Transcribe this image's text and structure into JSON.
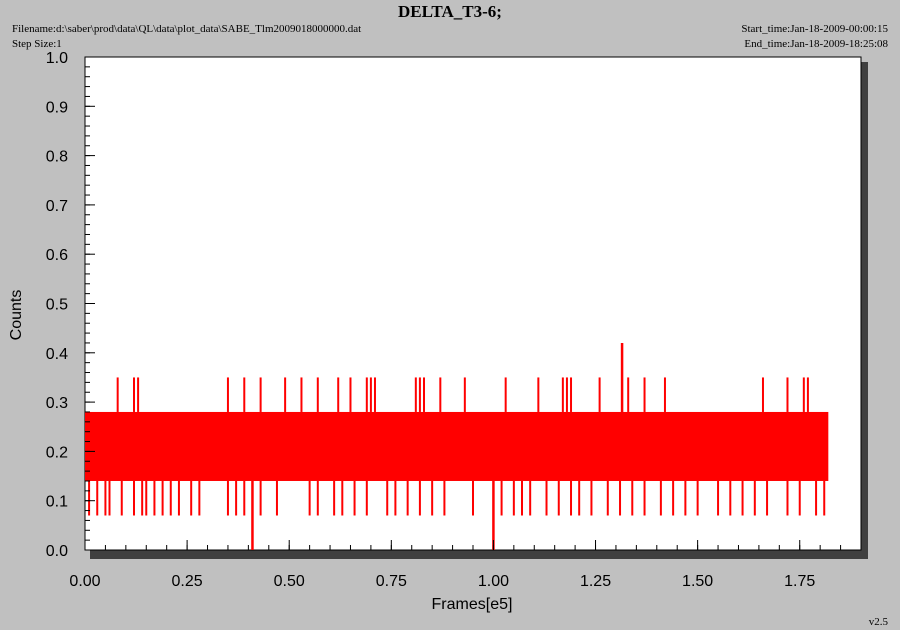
{
  "header": {
    "title": "DELTA_T3-6;",
    "filename": "Filename:d:\\saber\\prod\\data\\QL\\data\\plot_data\\SABE_Tlm2009018000000.dat",
    "step_size": "Step Size:1",
    "start_time": "Start_time:Jan-18-2009-00:00:15",
    "end_time": "End_time:Jan-18-2009-18:25:08"
  },
  "footer": {
    "version": "v2.5"
  },
  "colors": {
    "background": "#c0c0c0",
    "plot_bg": "#ffffff",
    "series": "#ff0000",
    "shadow": "#404040"
  },
  "chart_data": {
    "type": "line",
    "title": "DELTA_T3-6;",
    "xlabel": "Frames[e5]",
    "ylabel": "Counts",
    "xlim": [
      0,
      1.9
    ],
    "ylim": [
      0,
      1.0
    ],
    "x_ticks": [
      "0.00",
      "0.25",
      "0.50",
      "0.75",
      "1.00",
      "1.25",
      "1.50",
      "1.75"
    ],
    "y_ticks": [
      "0.0",
      "0.1",
      "0.2",
      "0.3",
      "0.4",
      "0.5",
      "0.6",
      "0.7",
      "0.8",
      "0.9",
      "1.0"
    ],
    "grid": false,
    "legend": "none",
    "series": [
      {
        "band": {
          "x_range": [
            0.0,
            1.82
          ],
          "low": 0.14,
          "high": 0.28
        },
        "lower_spikes_0_07": [
          0.01,
          0.03,
          0.05,
          0.06,
          0.09,
          0.12,
          0.14,
          0.15,
          0.17,
          0.19,
          0.21,
          0.23,
          0.26,
          0.28,
          0.35,
          0.37,
          0.39,
          0.43,
          0.47,
          0.55,
          0.57,
          0.61,
          0.63,
          0.66,
          0.69,
          0.74,
          0.76,
          0.79,
          0.82,
          0.85,
          0.88,
          0.95,
          1.02,
          1.05,
          1.07,
          1.09,
          1.13,
          1.16,
          1.19,
          1.21,
          1.24,
          1.28,
          1.31,
          1.34,
          1.37,
          1.41,
          1.44,
          1.47,
          1.5,
          1.55,
          1.58,
          1.61,
          1.64,
          1.67,
          1.72,
          1.75,
          1.79,
          1.81
        ],
        "upper_spikes_0_35": [
          0.08,
          0.12,
          0.13,
          0.35,
          0.39,
          0.43,
          0.49,
          0.53,
          0.57,
          0.62,
          0.65,
          0.69,
          0.7,
          0.71,
          0.81,
          0.82,
          0.83,
          0.87,
          0.93,
          1.03,
          1.11,
          1.17,
          1.18,
          1.19,
          1.26,
          1.33,
          1.37,
          1.42,
          1.66,
          1.72,
          1.76,
          1.77
        ],
        "peak_spikes": [
          {
            "x": 1.315,
            "y": 0.42
          }
        ],
        "dropouts_to_zero": [
          0.41,
          1.0
        ]
      }
    ]
  }
}
